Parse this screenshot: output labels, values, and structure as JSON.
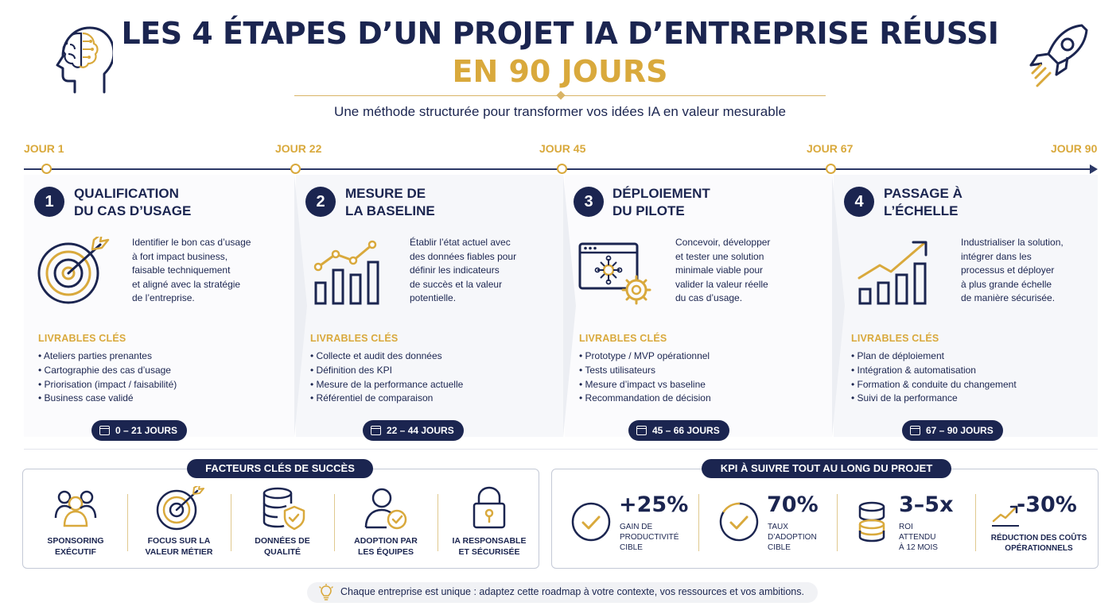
{
  "header": {
    "title_line1": "LES 4 ÉTAPES D’UN PROJET IA D’ENTREPRISE RÉUSSI",
    "title_line2": "EN 90 JOURS",
    "subtitle": "Une méthode structurée pour transformer vos idées IA en valeur mesurable",
    "left_icon": "brain-head-icon",
    "right_icon": "rocket-icon"
  },
  "timeline": {
    "labels": [
      "JOUR 1",
      "JOUR 22",
      "JOUR 45",
      "JOUR 67",
      "JOUR 90"
    ]
  },
  "steps": [
    {
      "number": "1",
      "title_line1": "QUALIFICATION",
      "title_line2": "DU CAS D’USAGE",
      "icon": "target-arrow-icon",
      "desc": [
        "Identifier le bon cas d’usage",
        "à fort impact business,",
        "faisable techniquement",
        "et aligné avec la stratégie",
        "de l’entreprise."
      ],
      "deliverables_title": "LIVRABLES CLÉS",
      "deliverables": [
        "Ateliers parties prenantes",
        "Cartographie des cas d’usage",
        "Priorisation (impact / faisabilité)",
        "Business case validé"
      ],
      "duration": "0 – 21 JOURS"
    },
    {
      "number": "2",
      "title_line1": "MESURE DE",
      "title_line2": "LA BASELINE",
      "icon": "bar-chart-icon",
      "desc": [
        "Établir l’état actuel avec",
        "des données fiables pour",
        "définir les indicateurs",
        "de succès et la valeur",
        "potentielle."
      ],
      "deliverables_title": "LIVRABLES CLÉS",
      "deliverables": [
        "Collecte et audit des données",
        "Définition des KPI",
        "Mesure de la performance actuelle",
        "Référentiel de comparaison"
      ],
      "duration": "22 – 44 JOURS"
    },
    {
      "number": "3",
      "title_line1": "DÉPLOIEMENT",
      "title_line2": "DU PILOTE",
      "icon": "pilot-window-gear-icon",
      "desc": [
        "Concevoir, développer",
        "et tester une solution",
        "minimale viable pour",
        "valider la valeur réelle",
        "du cas d’usage."
      ],
      "deliverables_title": "LIVRABLES CLÉS",
      "deliverables": [
        "Prototype / MVP opérationnel",
        "Tests utilisateurs",
        "Mesure d’impact vs baseline",
        "Recommandation de décision"
      ],
      "duration": "45 – 66 JOURS"
    },
    {
      "number": "4",
      "title_line1": "PASSAGE À",
      "title_line2": "L’ÉCHELLE",
      "icon": "growth-chart-icon",
      "desc": [
        "Industrialiser la solution,",
        "intégrer dans les",
        "processus et déployer",
        "à plus grande échelle",
        "de manière sécurisée."
      ],
      "deliverables_title": "LIVRABLES CLÉS",
      "deliverables": [
        "Plan de déploiement",
        "Intégration & automatisation",
        "Formation & conduite du changement",
        "Suivi de la performance"
      ],
      "duration": "67 – 90 JOURS"
    }
  ],
  "success_factors": {
    "title": "FACTEURS CLÉS DE SUCCÈS",
    "items": [
      {
        "icon": "people-icon",
        "line1": "SPONSORING",
        "line2": "EXÉCUTIF"
      },
      {
        "icon": "target-icon",
        "line1": "FOCUS SUR LA",
        "line2": "VALEUR MÉTIER"
      },
      {
        "icon": "database-shield-icon",
        "line1": "DONNÉES DE",
        "line2": "QUALITÉ"
      },
      {
        "icon": "user-check-icon",
        "line1": "ADOPTION PAR",
        "line2": "LES ÉQUIPES"
      },
      {
        "icon": "padlock-icon",
        "line1": "IA RESPONSABLE",
        "line2": "ET SÉCURISÉE"
      }
    ]
  },
  "kpis": {
    "title": "KPI À SUIVRE TOUT AU LONG DU PROJET",
    "items": [
      {
        "icon": "check-circle-icon",
        "value": "+25%",
        "lines": [
          "GAIN DE",
          "PRODUCTIVITÉ",
          "CIBLE"
        ]
      },
      {
        "icon": "check-gauge-icon",
        "value": "70%",
        "lines": [
          "TAUX",
          "D’ADOPTION",
          "CIBLE"
        ]
      },
      {
        "icon": "coin-stack-icon",
        "value": "3–5x",
        "lines": [
          "ROI",
          "ATTENDU",
          "À 12 MOIS"
        ]
      },
      {
        "icon": "trend-down-icon",
        "value": "-30%",
        "lines": [
          "RÉDUCTION DES COÛTS",
          "OPÉRATIONNELS"
        ]
      }
    ]
  },
  "footer": {
    "icon": "lightbulb-icon",
    "text": "Chaque entreprise est unique : adaptez cette roadmap à votre contexte, vos ressources et vos ambitions."
  },
  "colors": {
    "navy": "#1b2550",
    "gold": "#d9a93c",
    "panel": "#f6f7fa"
  }
}
